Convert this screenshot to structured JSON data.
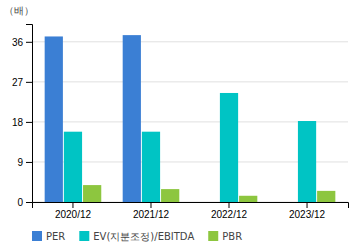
{
  "chart_data": {
    "type": "bar",
    "ylabel": "（배）",
    "categories": [
      "2020/12",
      "2021/12",
      "2022/12",
      "2023/12"
    ],
    "series": [
      {
        "name": "PER",
        "color": "#3b7fd4",
        "values": [
          37.2,
          37.5,
          0.0,
          0.0
        ]
      },
      {
        "name": "EV(지분조정)/EBITDA",
        "color": "#00c4c4",
        "values": [
          15.8,
          15.8,
          24.5,
          18.2
        ]
      },
      {
        "name": "PBR",
        "color": "#8dc63f",
        "values": [
          3.8,
          2.9,
          1.4,
          2.5
        ]
      }
    ],
    "ylim": [
      0,
      40
    ],
    "yticks": [
      0,
      9,
      18,
      27,
      36
    ],
    "grid": true,
    "legend": "bottom"
  }
}
